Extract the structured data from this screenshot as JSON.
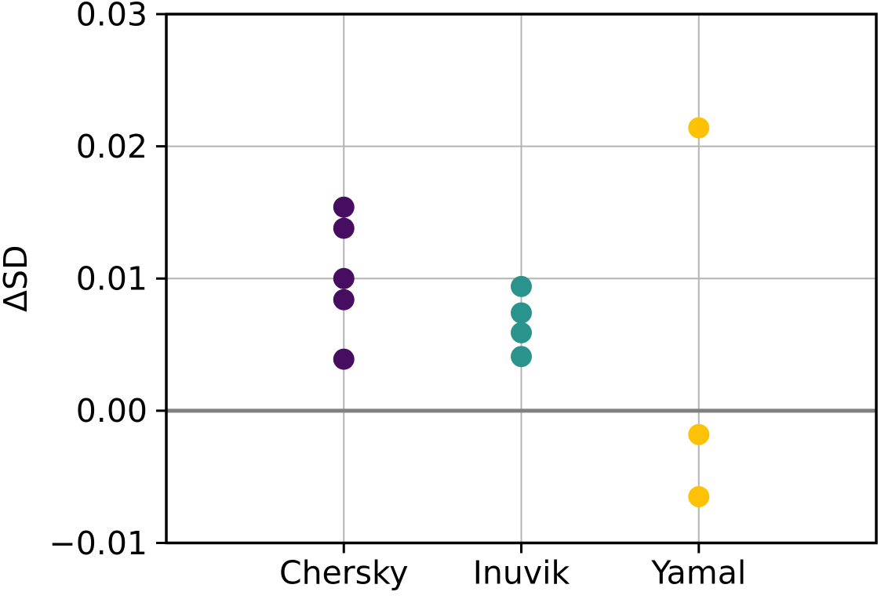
{
  "chart_data": {
    "type": "scatter",
    "title": "",
    "xlabel": "",
    "ylabel": "ΔSD",
    "categories": [
      "Chersky",
      "Inuvik",
      "Yamal"
    ],
    "x_positions": [
      0,
      1,
      2
    ],
    "xlim": [
      -1,
      3
    ],
    "ylim": [
      -0.01,
      0.03
    ],
    "yticks": [
      {
        "value": -0.01,
        "label": "−0.01"
      },
      {
        "value": 0.0,
        "label": "0.00"
      },
      {
        "value": 0.01,
        "label": "0.01"
      },
      {
        "value": 0.02,
        "label": "0.02"
      },
      {
        "value": 0.03,
        "label": "0.03"
      }
    ],
    "grid": true,
    "legend": "none",
    "marker": "circle",
    "series": [
      {
        "name": "Chersky",
        "color": "#470d60",
        "values": [
          0.0154,
          0.0138,
          0.01,
          0.0084,
          0.0039
        ]
      },
      {
        "name": "Inuvik",
        "color": "#2a948c",
        "values": [
          0.0094,
          0.0074,
          0.0059,
          0.0041
        ]
      },
      {
        "name": "Yamal",
        "color": "#fdc106",
        "values": [
          0.0214,
          -0.0018,
          -0.0065
        ]
      }
    ],
    "zero_line": {
      "value": 0.0,
      "color": "#808080"
    },
    "colors": {
      "grid": "#b4b4b4",
      "spine": "#000000",
      "tick": "#000000",
      "background": "#ffffff"
    }
  }
}
